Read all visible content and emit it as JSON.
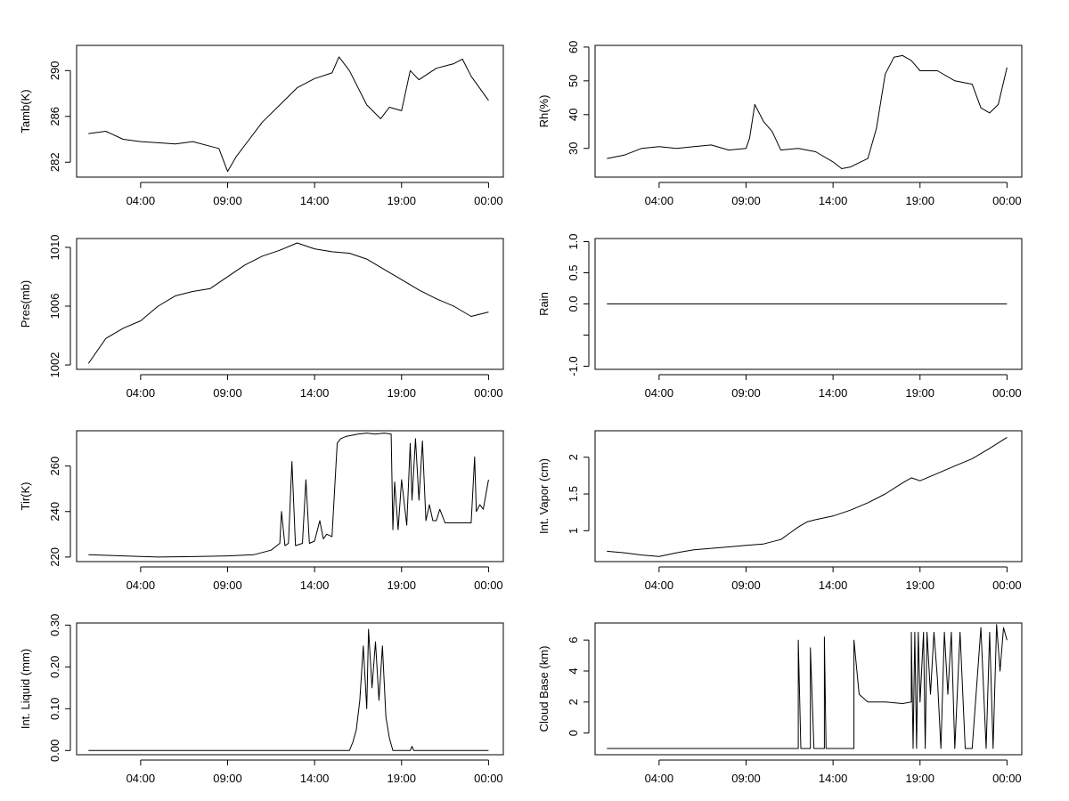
{
  "chart_data": [
    {
      "type": "line",
      "ylabel": "Tamb(K)",
      "ylim": [
        280.7,
        292.2
      ],
      "yticks": [
        282,
        286,
        290
      ],
      "xticks": [
        "04:00",
        "09:00",
        "14:00",
        "19:00",
        "00:00"
      ],
      "series": [
        {
          "name": "Tamb(K)",
          "x": [
            1.0,
            2.0,
            3.0,
            4.0,
            5.0,
            6.0,
            7.0,
            8.0,
            8.5,
            9.0,
            9.5,
            10.0,
            11.0,
            12.0,
            13.0,
            14.0,
            15.0,
            15.4,
            16.0,
            17.0,
            17.8,
            18.3,
            19.0,
            19.5,
            20.0,
            21.0,
            22.0,
            22.5,
            23.0,
            24.0
          ],
          "y": [
            284.5,
            284.7,
            284.0,
            283.8,
            283.7,
            283.6,
            283.8,
            283.4,
            283.2,
            281.2,
            282.5,
            283.5,
            285.5,
            287.0,
            288.5,
            289.3,
            289.8,
            291.2,
            290.0,
            287.0,
            285.8,
            286.8,
            286.5,
            290.0,
            289.2,
            290.2,
            290.6,
            291.0,
            289.5,
            287.4
          ]
        }
      ]
    },
    {
      "type": "line",
      "ylabel": "Rh(%)",
      "ylim": [
        21.5,
        60.5
      ],
      "yticks": [
        30,
        40,
        50,
        60
      ],
      "xticks": [
        "04:00",
        "09:00",
        "14:00",
        "19:00",
        "00:00"
      ],
      "series": [
        {
          "name": "Rh(%)",
          "x": [
            1.0,
            2.0,
            3.0,
            4.0,
            5.0,
            6.0,
            7.0,
            8.0,
            9.0,
            9.2,
            9.5,
            10.0,
            10.5,
            11.0,
            12.0,
            13.0,
            14.0,
            14.5,
            15.0,
            16.0,
            16.5,
            17.0,
            17.5,
            18.0,
            18.5,
            19.0,
            20.0,
            21.0,
            22.0,
            22.5,
            23.0,
            23.5,
            24.0
          ],
          "y": [
            27.0,
            28.0,
            30.0,
            30.5,
            30.0,
            30.5,
            31.0,
            29.5,
            30.0,
            33.0,
            43.0,
            38.0,
            35.0,
            29.5,
            30.0,
            29.0,
            26.0,
            24.0,
            24.5,
            27.0,
            36.0,
            52.0,
            57.0,
            57.5,
            56.0,
            53.0,
            53.0,
            50.0,
            49.0,
            42.0,
            40.5,
            43.0,
            54.0
          ]
        }
      ]
    },
    {
      "type": "line",
      "ylabel": "Pres(mb)",
      "ylim": [
        1001.7,
        1010.6
      ],
      "yticks": [
        1002,
        1006,
        1010
      ],
      "xticks": [
        "04:00",
        "09:00",
        "14:00",
        "19:00",
        "00:00"
      ],
      "series": [
        {
          "name": "Pres(mb)",
          "x": [
            1.0,
            2.0,
            3.0,
            4.0,
            5.0,
            6.0,
            7.0,
            8.0,
            9.0,
            10.0,
            11.0,
            12.0,
            13.0,
            14.0,
            15.0,
            16.0,
            17.0,
            18.0,
            19.0,
            20.0,
            21.0,
            22.0,
            23.0,
            24.0
          ],
          "y": [
            1002.1,
            1003.8,
            1004.5,
            1005.0,
            1006.0,
            1006.7,
            1007.0,
            1007.2,
            1008.0,
            1008.8,
            1009.4,
            1009.8,
            1010.3,
            1009.9,
            1009.7,
            1009.6,
            1009.2,
            1008.5,
            1007.8,
            1007.1,
            1006.5,
            1006.0,
            1005.3,
            1005.6
          ]
        }
      ]
    },
    {
      "type": "line",
      "ylabel": "Rain",
      "ylim": [
        -1.05,
        1.05
      ],
      "yticks": [
        -1.0,
        -0.5,
        0.0,
        0.5,
        1.0
      ],
      "yticklabels": [
        "-1.0",
        "",
        "0.0",
        "0.5",
        "1.0"
      ],
      "xticks": [
        "04:00",
        "09:00",
        "14:00",
        "19:00",
        "00:00"
      ],
      "series": [
        {
          "name": "Rain",
          "x": [
            1.0,
            24.0
          ],
          "y": [
            0.0,
            0.0
          ]
        }
      ]
    },
    {
      "type": "line",
      "ylabel": "Tir(K)",
      "ylim": [
        218.0,
        275.5
      ],
      "yticks": [
        220,
        240,
        260
      ],
      "xticks": [
        "04:00",
        "09:00",
        "14:00",
        "19:00",
        "00:00"
      ],
      "series": [
        {
          "name": "Tir(K)",
          "x": [
            1.0,
            3.0,
            5.0,
            7.0,
            9.0,
            10.5,
            11.5,
            12.0,
            12.1,
            12.3,
            12.5,
            12.7,
            12.9,
            13.3,
            13.5,
            13.7,
            14.0,
            14.3,
            14.5,
            14.7,
            15.0,
            15.3,
            15.5,
            15.8,
            16.5,
            17.0,
            17.5,
            18.0,
            18.4,
            18.5,
            18.6,
            18.8,
            19.0,
            19.3,
            19.5,
            19.6,
            19.8,
            20.0,
            20.2,
            20.4,
            20.6,
            20.8,
            21.0,
            21.2,
            21.5,
            22.0,
            22.5,
            23.0,
            23.2,
            23.3,
            23.5,
            23.7,
            24.0
          ],
          "y": [
            221.0,
            220.5,
            220.0,
            220.2,
            220.5,
            221.0,
            223.0,
            226.0,
            240.0,
            225.0,
            226.0,
            262.0,
            225.0,
            226.0,
            254.0,
            226.0,
            227.0,
            236.0,
            228.0,
            230.0,
            229.0,
            270.0,
            272.0,
            273.0,
            274.0,
            274.5,
            274.0,
            274.5,
            274.0,
            232.0,
            253.0,
            232.0,
            254.0,
            234.0,
            270.0,
            245.0,
            272.0,
            245.0,
            271.0,
            236.0,
            243.0,
            236.0,
            236.0,
            241.0,
            235.0,
            235.0,
            235.0,
            235.0,
            264.0,
            240.0,
            243.0,
            241.0,
            254.0
          ]
        }
      ]
    },
    {
      "type": "line",
      "ylabel": "Int. Vapor (cm)",
      "ylim": [
        0.58,
        2.36
      ],
      "yticks": [
        1.0,
        1.5,
        2.0
      ],
      "xticks": [
        "04:00",
        "09:00",
        "14:00",
        "19:00",
        "00:00"
      ],
      "series": [
        {
          "name": "Int. Vapor (cm)",
          "x": [
            1.0,
            2.0,
            3.0,
            4.0,
            5.0,
            6.0,
            7.0,
            8.0,
            9.0,
            10.0,
            11.0,
            12.0,
            12.5,
            13.0,
            14.0,
            15.0,
            16.0,
            17.0,
            18.0,
            18.5,
            19.0,
            20.0,
            21.0,
            22.0,
            23.0,
            24.0
          ],
          "y": [
            0.72,
            0.7,
            0.67,
            0.65,
            0.7,
            0.74,
            0.76,
            0.78,
            0.8,
            0.82,
            0.88,
            1.05,
            1.12,
            1.15,
            1.2,
            1.28,
            1.38,
            1.5,
            1.65,
            1.72,
            1.68,
            1.78,
            1.88,
            1.98,
            2.12,
            2.27
          ]
        }
      ]
    },
    {
      "type": "line",
      "ylabel": "Int. Liquid (mm)",
      "ylim": [
        -0.01,
        0.305
      ],
      "yticks": [
        0.0,
        0.1,
        0.2,
        0.3
      ],
      "yticklabels": [
        "0.00",
        "0.10",
        "0.20",
        "0.30"
      ],
      "xticks": [
        "04:00",
        "09:00",
        "14:00",
        "19:00",
        "00:00"
      ],
      "series": [
        {
          "name": "Int. Liquid (mm)",
          "x": [
            1.0,
            15.5,
            16.0,
            16.2,
            16.4,
            16.6,
            16.8,
            17.0,
            17.1,
            17.3,
            17.5,
            17.7,
            17.9,
            18.1,
            18.3,
            18.5,
            19.0,
            19.5,
            19.6,
            19.7,
            20.0,
            24.0
          ],
          "y": [
            0.0,
            0.0,
            0.0,
            0.02,
            0.05,
            0.12,
            0.25,
            0.1,
            0.29,
            0.15,
            0.26,
            0.12,
            0.25,
            0.08,
            0.03,
            0.0,
            0.0,
            0.0,
            0.01,
            0.0,
            0.0,
            0.0
          ]
        }
      ]
    },
    {
      "type": "line",
      "ylabel": "Cloud Base (km)",
      "ylim": [
        -1.4,
        7.1
      ],
      "yticks": [
        0,
        2,
        4,
        6
      ],
      "xticks": [
        "04:00",
        "09:00",
        "14:00",
        "19:00",
        "00:00"
      ],
      "series": [
        {
          "name": "Cloud Base (km)",
          "x": [
            1.0,
            12.0,
            12.0,
            12.15,
            12.7,
            12.7,
            12.9,
            13.5,
            13.5,
            13.6,
            15.2,
            15.2,
            15.5,
            16.0,
            17.0,
            18.0,
            18.5,
            18.5,
            18.6,
            18.7,
            18.8,
            18.9,
            19.0,
            19.2,
            19.3,
            19.4,
            19.6,
            19.8,
            20.0,
            20.2,
            20.4,
            20.6,
            20.8,
            21.0,
            21.3,
            21.6,
            22.0,
            22.5,
            22.8,
            23.0,
            23.2,
            23.4,
            23.6,
            23.8,
            24.0
          ],
          "y": [
            -1.0,
            -1.0,
            6.0,
            -1.0,
            -1.0,
            5.5,
            -1.0,
            -1.0,
            6.2,
            -1.0,
            -1.0,
            6.0,
            2.5,
            2.0,
            2.0,
            1.9,
            2.0,
            6.5,
            -1.0,
            6.5,
            -1.0,
            6.5,
            2.0,
            6.5,
            -1.0,
            6.5,
            2.5,
            6.5,
            3.5,
            -1.0,
            6.5,
            2.5,
            6.5,
            -1.0,
            6.5,
            -1.0,
            -1.0,
            6.8,
            -1.0,
            6.5,
            -1.0,
            7.0,
            4.0,
            6.8,
            6.0
          ]
        }
      ]
    }
  ]
}
